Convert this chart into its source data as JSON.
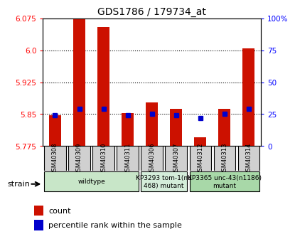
{
  "title": "GDS1786 / 179734_at",
  "samples": [
    "GSM40308",
    "GSM40309",
    "GSM40310",
    "GSM40311",
    "GSM40306",
    "GSM40307",
    "GSM40312",
    "GSM40313",
    "GSM40314"
  ],
  "count_values": [
    5.847,
    6.075,
    6.055,
    5.853,
    5.878,
    5.862,
    5.795,
    5.862,
    6.005
  ],
  "percentile_values": [
    24,
    29,
    29,
    24,
    25,
    24,
    22,
    25,
    29
  ],
  "ylim_left": [
    5.775,
    6.075
  ],
  "ylim_right": [
    0,
    100
  ],
  "yticks_left": [
    5.775,
    5.85,
    5.925,
    6.0,
    6.075
  ],
  "yticks_right": [
    0,
    25,
    50,
    75,
    100
  ],
  "groups": [
    {
      "label": "wildtype",
      "start": 0,
      "end": 3,
      "color": "#c8e6c8"
    },
    {
      "label": "KP3293 tom-1(nu\n468) mutant",
      "start": 4,
      "end": 5,
      "color": "#d4edda"
    },
    {
      "label": "KP3365 unc-43(n1186)\nmutant",
      "start": 6,
      "end": 8,
      "color": "#a8d8a8"
    }
  ],
  "bar_color": "#cc1100",
  "dot_color": "#0000cc",
  "background_color": "#ffffff",
  "grid_color": "#000000",
  "strain_label": "strain",
  "legend_count": "count",
  "legend_percentile": "percentile rank within the sample"
}
